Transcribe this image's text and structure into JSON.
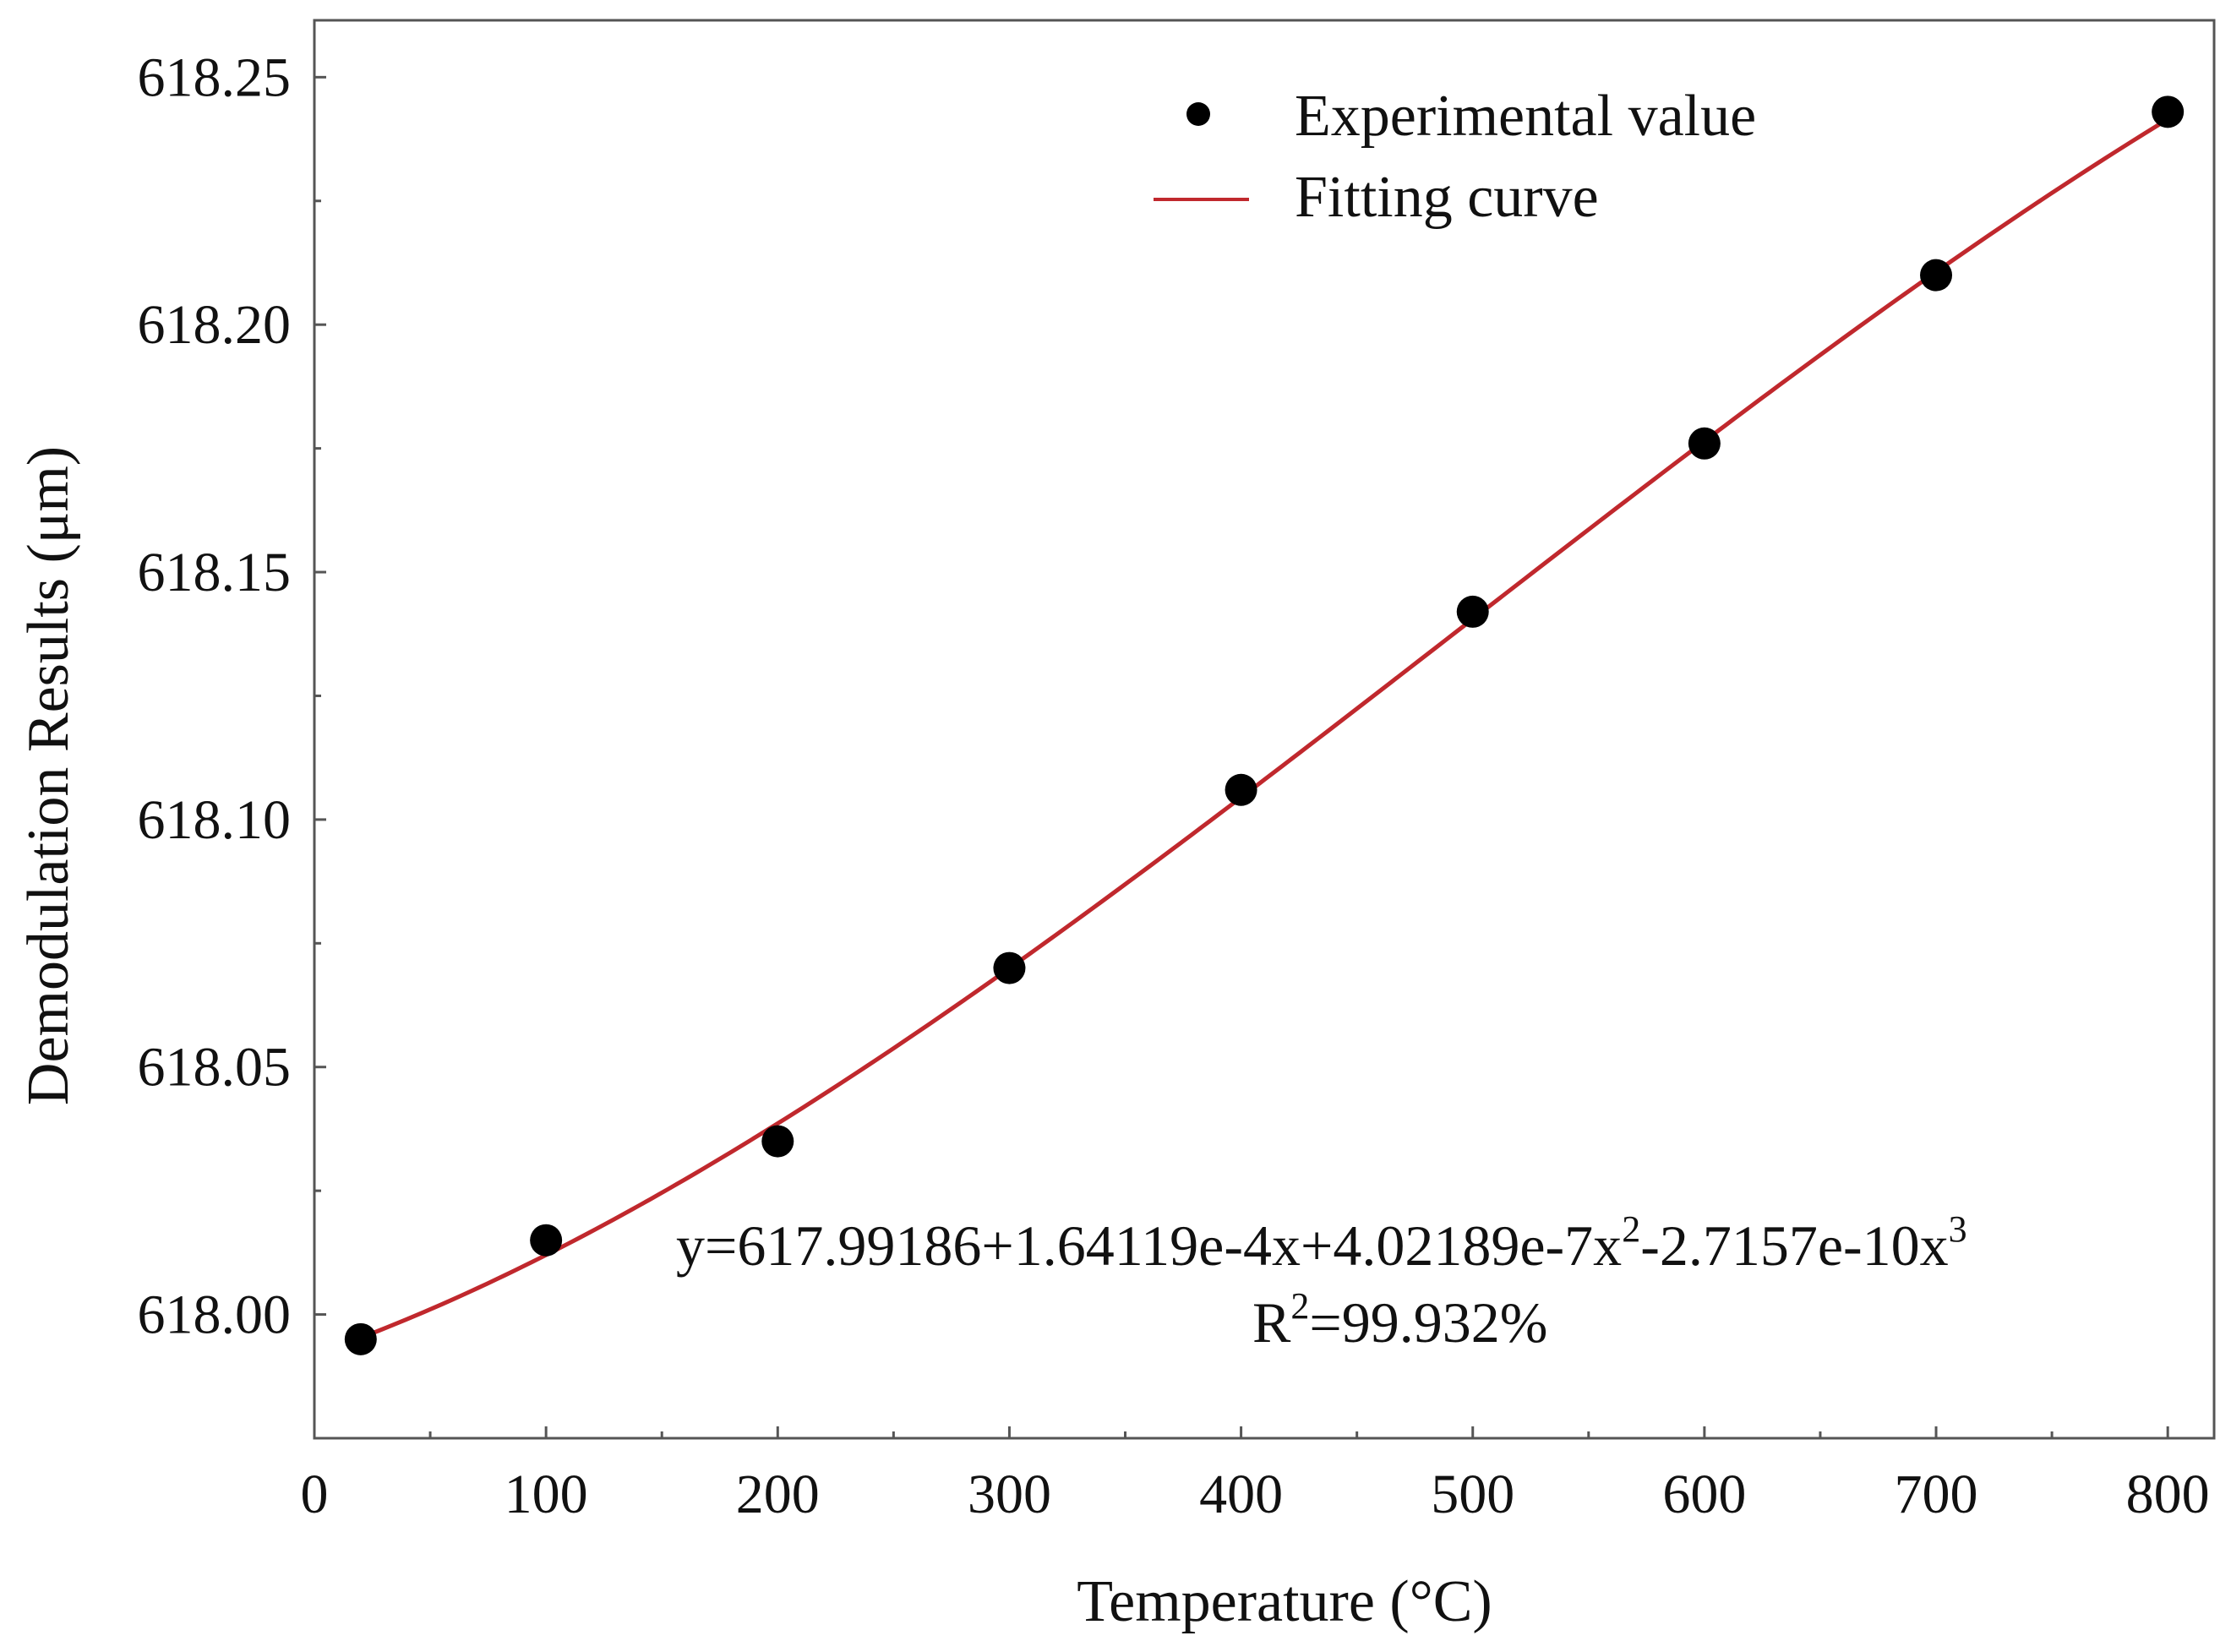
{
  "chart_data": {
    "type": "scatter",
    "title": "",
    "xlabel_main": "Temperature (",
    "xlabel_unit": "°C",
    "xlabel_close": ")",
    "ylabel": "Demodulation Results (μm)",
    "xlim": [
      0,
      820
    ],
    "ylim": [
      617.975,
      618.2615
    ],
    "xticks": [
      0,
      100,
      200,
      300,
      400,
      500,
      600,
      700,
      800
    ],
    "xtick_labels": [
      "0",
      "100",
      "200",
      "300",
      "400",
      "500",
      "600",
      "700",
      "800"
    ],
    "yticks": [
      618.0,
      618.05,
      618.1,
      618.15,
      618.2,
      618.25
    ],
    "ytick_labels": [
      "618.00",
      "618.05",
      "618.10",
      "618.15",
      "618.20",
      "618.25"
    ],
    "grid": false,
    "legend_position": "top-right",
    "series": [
      {
        "name": "Experimental value",
        "kind": "scatter",
        "color": "#000000",
        "x": [
          20,
          100,
          200,
          300,
          400,
          500,
          600,
          700,
          800
        ],
        "y": [
          617.995,
          618.015,
          618.035,
          618.07,
          618.106,
          618.142,
          618.176,
          618.21,
          618.243
        ]
      },
      {
        "name": "Fitting curve",
        "kind": "line",
        "color": "#c0282d",
        "coefficients": [
          617.99186,
          0.000164119,
          4.02189e-07,
          -2.7157e-10
        ],
        "x_range": [
          20,
          800
        ]
      }
    ],
    "annotation": {
      "equation_prefix": "y=617.99186+1.64119e-4x+4.02189e-7x",
      "equation_exp1": "2",
      "equation_middle": "-2.7157e-10x",
      "equation_exp2": "3",
      "r2_prefix": "R",
      "r2_exp": "2",
      "r2_value": "=99.932%"
    }
  }
}
